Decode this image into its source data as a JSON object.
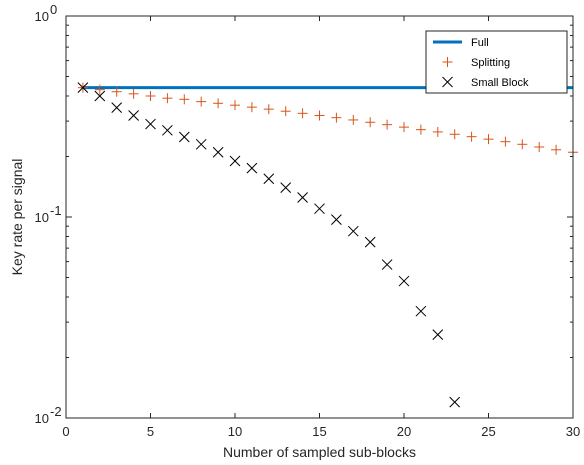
{
  "chart_data": {
    "type": "scatter",
    "xlabel": "Number of sampled sub-blocks",
    "ylabel": "Key rate per signal",
    "xlim": [
      0,
      30
    ],
    "ylim": [
      0.01,
      1
    ],
    "yscale": "log",
    "xticks": [
      0,
      5,
      10,
      15,
      20,
      25,
      30
    ],
    "yticks": [
      {
        "value": 0.01,
        "base": "10",
        "exp": "-2"
      },
      {
        "value": 0.1,
        "base": "10",
        "exp": "-1"
      },
      {
        "value": 1,
        "base": "10",
        "exp": "0"
      }
    ],
    "grid": false,
    "legend_position": "top-right",
    "series": [
      {
        "name": "Full",
        "style": "line",
        "color": "#0072BD",
        "x": [
          1,
          30
        ],
        "y": [
          0.44,
          0.44
        ]
      },
      {
        "name": "Splitting",
        "style": "plus",
        "color": "#D95319",
        "x": [
          1,
          2,
          3,
          4,
          5,
          6,
          7,
          8,
          9,
          10,
          11,
          12,
          13,
          14,
          15,
          16,
          17,
          18,
          19,
          20,
          21,
          22,
          23,
          24,
          25,
          26,
          27,
          28,
          29,
          30
        ],
        "y": [
          0.44,
          0.43,
          0.42,
          0.41,
          0.4,
          0.39,
          0.385,
          0.375,
          0.368,
          0.36,
          0.352,
          0.344,
          0.336,
          0.328,
          0.32,
          0.312,
          0.304,
          0.296,
          0.288,
          0.28,
          0.272,
          0.265,
          0.258,
          0.251,
          0.244,
          0.237,
          0.23,
          0.223,
          0.216,
          0.21
        ]
      },
      {
        "name": "Small Block",
        "style": "x",
        "color": "#000000",
        "x": [
          1,
          2,
          3,
          4,
          5,
          6,
          7,
          8,
          9,
          10,
          11,
          12,
          13,
          14,
          15,
          16,
          17,
          18,
          19,
          20,
          21,
          22,
          23
        ],
        "y": [
          0.44,
          0.4,
          0.35,
          0.32,
          0.29,
          0.27,
          0.25,
          0.23,
          0.21,
          0.19,
          0.175,
          0.155,
          0.14,
          0.125,
          0.11,
          0.097,
          0.085,
          0.075,
          0.058,
          0.048,
          0.034,
          0.026,
          0.012
        ]
      }
    ]
  }
}
